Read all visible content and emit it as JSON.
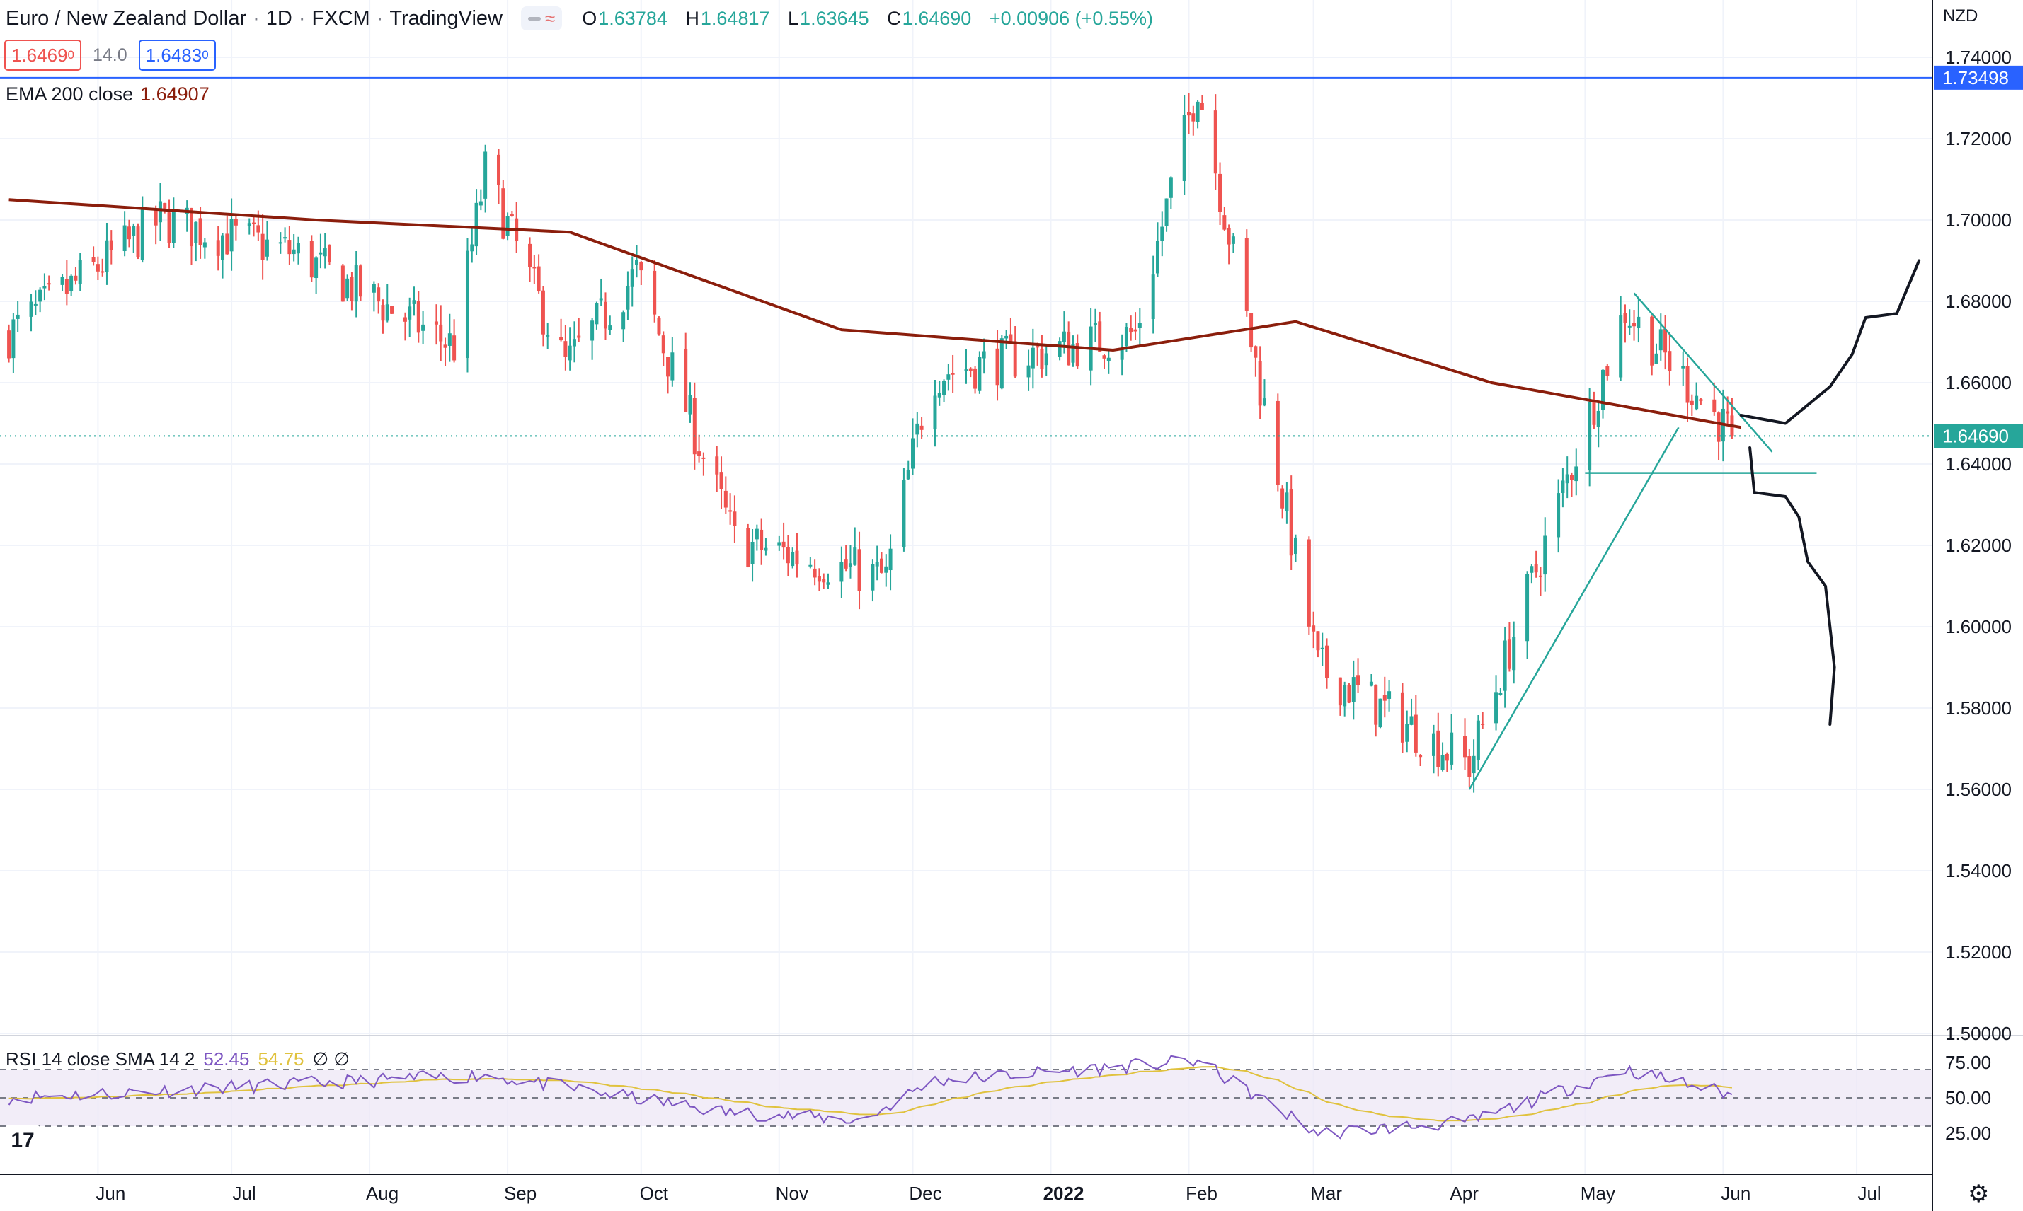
{
  "header": {
    "symbol": "Euro / New Zealand Dollar",
    "interval": "1D",
    "exchange": "FXCM",
    "source": "TradingView",
    "ohlc": {
      "o_label": "O",
      "o": "1.63784",
      "h_label": "H",
      "h": "1.64817",
      "l_label": "L",
      "l": "1.63645",
      "c_label": "C",
      "c": "1.64690",
      "change": "+0.00906 (+0.55%)"
    },
    "sell_price": "1.6469",
    "sell_price_sup": "0",
    "spread": "14.0",
    "buy_price": "1.6483",
    "buy_price_sup": "0"
  },
  "indicators": {
    "ema_label": "EMA 200 close",
    "ema_value": "1.64907",
    "rsi_label": "RSI 14 close SMA 14 2",
    "rsi_value": "52.45",
    "rsi_sma_value": "54.75",
    "rsi_flags": "∅ ∅"
  },
  "price_axis": {
    "currency": "NZD",
    "labels": [
      "1.74000",
      "1.72000",
      "1.70000",
      "1.68000",
      "1.66000",
      "1.64000",
      "1.62000",
      "1.60000",
      "1.58000",
      "1.56000",
      "1.54000",
      "1.52000",
      "1.50000"
    ],
    "hline_label": "1.73498",
    "last_label": "1.64690"
  },
  "rsi_axis": {
    "labels": [
      "75.00",
      "50.00",
      "25.00"
    ]
  },
  "time_axis": {
    "labels": [
      "Jun",
      "Jul",
      "Aug",
      "Sep",
      "Oct",
      "Nov",
      "Dec",
      "2022",
      "Feb",
      "Mar",
      "Apr",
      "May",
      "Jun",
      "Jul"
    ]
  },
  "colors": {
    "up": "#26a69a",
    "down": "#ef5350",
    "ema": "#8b1e0c",
    "hline": "#2962ff",
    "trend": "#26a69a",
    "rsi": "#7e57c2",
    "rsi_sma": "#e0c23e",
    "rsi_band": "#ede7f6",
    "projection": "#131722"
  },
  "chart_data": {
    "type": "candlestick",
    "symbol": "EURNZD",
    "timeframe": "1D",
    "ylim": [
      1.5,
      1.745
    ],
    "price_anchors": [
      {
        "date": "2021-05-12",
        "close": 1.672
      },
      {
        "date": "2021-06-15",
        "close": 1.7
      },
      {
        "date": "2021-07-15",
        "close": 1.692
      },
      {
        "date": "2021-08-20",
        "close": 1.669
      },
      {
        "date": "2021-08-27",
        "close": 1.712
      },
      {
        "date": "2021-09-14",
        "close": 1.664
      },
      {
        "date": "2021-09-30",
        "close": 1.687
      },
      {
        "date": "2021-10-22",
        "close": 1.621
      },
      {
        "date": "2021-11-25",
        "close": 1.612
      },
      {
        "date": "2021-12-05",
        "close": 1.662
      },
      {
        "date": "2022-01-20",
        "close": 1.672
      },
      {
        "date": "2022-02-03",
        "close": 1.734
      },
      {
        "date": "2022-03-02",
        "close": 1.59
      },
      {
        "date": "2022-03-22",
        "close": 1.576
      },
      {
        "date": "2022-04-05",
        "close": 1.566
      },
      {
        "date": "2022-05-10",
        "close": 1.678
      },
      {
        "date": "2022-06-03",
        "close": 1.6469
      }
    ],
    "ema200": [
      {
        "date": "2021-05-12",
        "value": 1.705
      },
      {
        "date": "2021-07-20",
        "value": 1.7
      },
      {
        "date": "2021-09-15",
        "value": 1.697
      },
      {
        "date": "2021-11-15",
        "value": 1.673
      },
      {
        "date": "2022-01-15",
        "value": 1.668
      },
      {
        "date": "2022-02-25",
        "value": 1.675
      },
      {
        "date": "2022-04-10",
        "value": 1.66
      },
      {
        "date": "2022-06-05",
        "value": 1.649
      }
    ],
    "horizontal_line": 1.73498,
    "last_price": 1.6469,
    "trendlines": [
      {
        "from": {
          "date": "2022-04-05",
          "price": 1.56
        },
        "to": {
          "date": "2022-05-22",
          "price": 1.649
        }
      },
      {
        "from": {
          "date": "2022-05-12",
          "price": 1.682
        },
        "to": {
          "date": "2022-06-12",
          "price": 1.643
        }
      },
      {
        "from": {
          "date": "2022-05-01",
          "price": 1.6378
        },
        "to": {
          "date": "2022-06-22",
          "price": 1.6378
        }
      }
    ],
    "rsi": {
      "period": 14,
      "upper": 70,
      "middle": 50,
      "lower": 30,
      "last": 52.45,
      "sma_last": 54.75,
      "anchors": [
        {
          "date": "2021-05-12",
          "value": 50
        },
        {
          "date": "2021-08-27",
          "value": 66
        },
        {
          "date": "2021-10-20",
          "value": 40
        },
        {
          "date": "2021-11-20",
          "value": 34
        },
        {
          "date": "2021-12-05",
          "value": 62
        },
        {
          "date": "2022-02-03",
          "value": 76
        },
        {
          "date": "2022-03-02",
          "value": 25
        },
        {
          "date": "2022-04-05",
          "value": 33
        },
        {
          "date": "2022-05-10",
          "value": 70
        },
        {
          "date": "2022-06-03",
          "value": 52.45
        }
      ]
    },
    "x_start": "2021-05-10",
    "x_end": "2022-07-18"
  }
}
